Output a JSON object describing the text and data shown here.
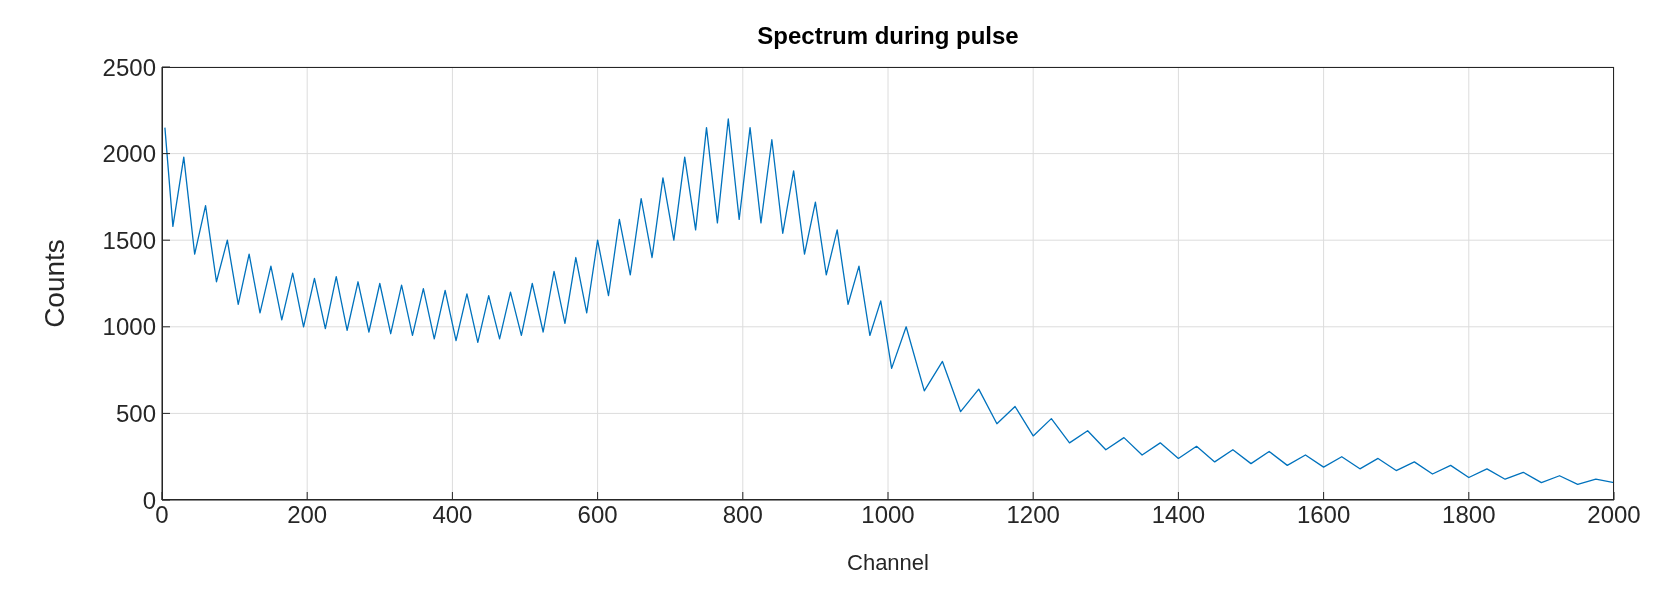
{
  "chart_data": {
    "type": "line",
    "title": "Spectrum during pulse",
    "xlabel": "Channel",
    "ylabel": "Counts",
    "x": [
      4,
      15,
      30,
      45,
      60,
      75,
      90,
      105,
      120,
      135,
      150,
      165,
      180,
      195,
      210,
      225,
      240,
      255,
      270,
      285,
      300,
      315,
      330,
      345,
      360,
      375,
      390,
      405,
      420,
      435,
      450,
      465,
      480,
      495,
      510,
      525,
      540,
      555,
      570,
      585,
      600,
      615,
      630,
      645,
      660,
      675,
      690,
      705,
      720,
      735,
      750,
      765,
      780,
      795,
      810,
      825,
      840,
      855,
      870,
      885,
      900,
      915,
      930,
      945,
      960,
      975,
      990,
      1005,
      1025,
      1050,
      1075,
      1100,
      1125,
      1150,
      1175,
      1200,
      1225,
      1250,
      1275,
      1300,
      1325,
      1350,
      1375,
      1400,
      1425,
      1450,
      1475,
      1500,
      1525,
      1550,
      1575,
      1600,
      1625,
      1650,
      1675,
      1700,
      1725,
      1750,
      1775,
      1800,
      1825,
      1850,
      1875,
      1900,
      1925,
      1950,
      1975,
      2000
    ],
    "series": [
      {
        "color": "#0072bd",
        "values": [
          2150,
          1580,
          1980,
          1420,
          1700,
          1260,
          1500,
          1130,
          1420,
          1080,
          1350,
          1040,
          1310,
          1000,
          1280,
          990,
          1290,
          980,
          1260,
          970,
          1250,
          960,
          1240,
          950,
          1220,
          930,
          1210,
          920,
          1190,
          910,
          1180,
          930,
          1200,
          950,
          1250,
          970,
          1320,
          1020,
          1400,
          1080,
          1500,
          1180,
          1620,
          1300,
          1740,
          1400,
          1860,
          1500,
          1980,
          1560,
          2150,
          1600,
          2200,
          1620,
          2150,
          1600,
          2080,
          1540,
          1900,
          1420,
          1720,
          1300,
          1560,
          1130,
          1350,
          950,
          1150,
          760,
          1000,
          630,
          800,
          510,
          640,
          440,
          540,
          370,
          470,
          330,
          400,
          290,
          360,
          260,
          330,
          240,
          310,
          220,
          290,
          210,
          280,
          200,
          260,
          190,
          250,
          180,
          240,
          170,
          220,
          150,
          200,
          130,
          180,
          120,
          160,
          100,
          140,
          90,
          120,
          100
        ]
      }
    ],
    "xlim": [
      0,
      2000
    ],
    "xticks": [
      0,
      200,
      400,
      600,
      800,
      1000,
      1200,
      1400,
      1600,
      1800,
      2000
    ],
    "ylim": [
      0,
      2500
    ],
    "yticks": [
      0,
      500,
      1000,
      1500,
      2000,
      2500
    ],
    "grid": true,
    "marker": "none",
    "line_style": "solid"
  }
}
